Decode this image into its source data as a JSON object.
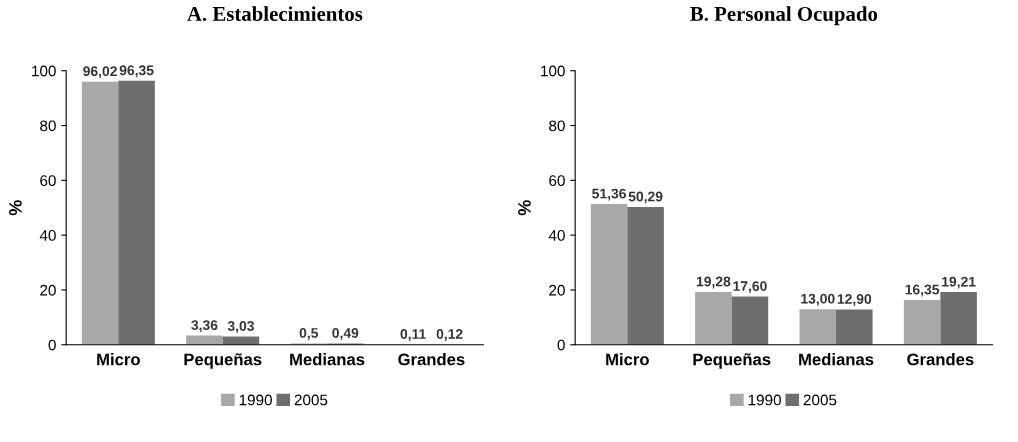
{
  "chart_data": [
    {
      "type": "bar",
      "title": "A. Establecimientos",
      "ylabel": "%",
      "categories": [
        "Micro",
        "Pequeñas",
        "Medianas",
        "Grandes"
      ],
      "ylim": [
        0,
        100
      ],
      "yticks": [
        0,
        20,
        40,
        60,
        80,
        100
      ],
      "grid": false,
      "legend": "bottom",
      "series": [
        {
          "name": "1990",
          "color": "#a8a8a8",
          "values": [
            96.02,
            3.36,
            0.5,
            0.11
          ],
          "value_labels": [
            "96,02",
            "3,36",
            "0,5",
            "0,11"
          ]
        },
        {
          "name": "2005",
          "color": "#6e6e6e",
          "values": [
            96.35,
            3.03,
            0.49,
            0.12
          ],
          "value_labels": [
            "96,35",
            "3,03",
            "0,49",
            "0,12"
          ]
        }
      ]
    },
    {
      "type": "bar",
      "title": "B. Personal Ocupado",
      "ylabel": "%",
      "categories": [
        "Micro",
        "Pequeñas",
        "Medianas",
        "Grandes"
      ],
      "ylim": [
        0,
        100
      ],
      "yticks": [
        0,
        20,
        40,
        60,
        80,
        100
      ],
      "grid": false,
      "legend": "bottom",
      "series": [
        {
          "name": "1990",
          "color": "#a8a8a8",
          "values": [
            51.36,
            19.28,
            13.0,
            16.35
          ],
          "value_labels": [
            "51,36",
            "19,28",
            "13,00",
            "16,35"
          ]
        },
        {
          "name": "2005",
          "color": "#6e6e6e",
          "values": [
            50.29,
            17.6,
            12.9,
            19.21
          ],
          "value_labels": [
            "50,29",
            "17,60",
            "12,90",
            "19,21"
          ]
        }
      ]
    }
  ]
}
